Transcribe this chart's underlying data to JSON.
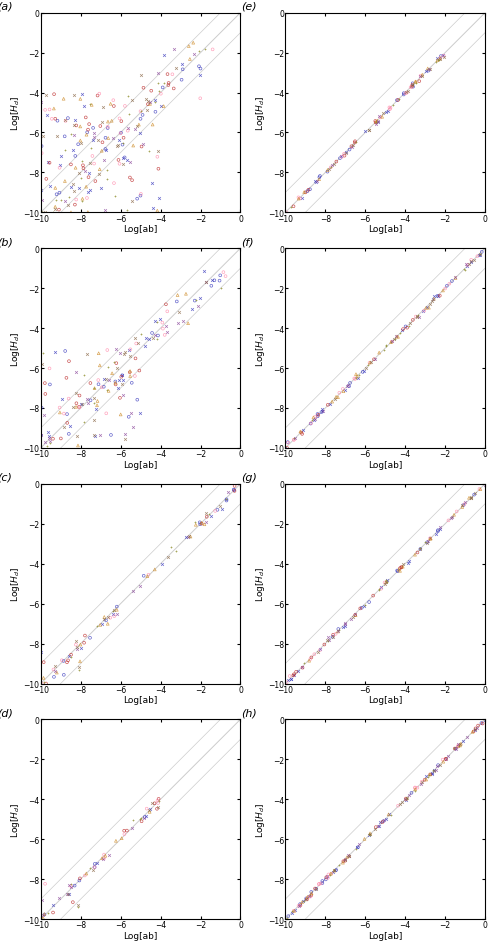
{
  "panel_labels": [
    "(a)",
    "(b)",
    "(c)",
    "(d)",
    "(e)",
    "(f)",
    "(g)",
    "(h)"
  ],
  "xlim": [
    -10,
    0
  ],
  "ylim": [
    -10,
    0
  ],
  "xticks": [
    -10,
    -8,
    -6,
    -4,
    -2,
    0
  ],
  "yticks": [
    -10,
    -8,
    -6,
    -4,
    -2,
    0
  ],
  "xlabel": "Log[ab]",
  "ref_line_offsets": [
    -1,
    0,
    1
  ],
  "ref_line_color": "#cccccc",
  "ref_line_lw": [
    0.5,
    0.7,
    0.5
  ],
  "marker_styles": [
    {
      "color": "#3333bb",
      "marker": "o",
      "filled": false
    },
    {
      "color": "#3333bb",
      "marker": "x",
      "filled": false
    },
    {
      "color": "#bb2222",
      "marker": "o",
      "filled": false
    },
    {
      "color": "#ff88aa",
      "marker": "o",
      "filled": false
    },
    {
      "color": "#cc8822",
      "marker": "^",
      "filled": false
    },
    {
      "color": "#888822",
      "marker": "+",
      "filled": false
    },
    {
      "color": "#884499",
      "marker": "x",
      "filled": false
    },
    {
      "color": "#886644",
      "marker": "x",
      "filled": false
    }
  ],
  "panel_configs": [
    {
      "spread": 1.8,
      "n_diag": 80,
      "n_scatter": 120,
      "scatter_region": [
        -10,
        -4
      ],
      "diag_range": [
        -10,
        -2
      ]
    },
    {
      "spread": 1.2,
      "n_diag": 100,
      "n_scatter": 60,
      "scatter_region": [
        -10,
        -5
      ],
      "diag_range": [
        -10,
        -1
      ]
    },
    {
      "spread": 0.4,
      "n_diag": 80,
      "n_scatter": 5,
      "scatter_region": [
        -10,
        -8
      ],
      "diag_range": [
        -10,
        0
      ]
    },
    {
      "spread": 0.3,
      "n_diag": 60,
      "n_scatter": 3,
      "scatter_region": [
        -10,
        -8
      ],
      "diag_range": [
        -10,
        -4
      ]
    },
    {
      "spread": 0.15,
      "n_diag": 100,
      "n_scatter": 0,
      "scatter_region": [
        -10,
        -9
      ],
      "diag_range": [
        -10,
        -2
      ]
    },
    {
      "spread": 0.15,
      "n_diag": 120,
      "n_scatter": 0,
      "scatter_region": [
        -10,
        -9
      ],
      "diag_range": [
        -10,
        0
      ]
    },
    {
      "spread": 0.12,
      "n_diag": 120,
      "n_scatter": 0,
      "scatter_region": [
        -10,
        -9
      ],
      "diag_range": [
        -10,
        0
      ]
    },
    {
      "spread": 0.12,
      "n_diag": 120,
      "n_scatter": 0,
      "scatter_region": [
        -10,
        -9
      ],
      "diag_range": [
        -10,
        0
      ]
    }
  ],
  "seed": 42,
  "marker_size": 4,
  "linewidth": 0.5,
  "alpha": 0.75,
  "bg_color": "#ffffff"
}
